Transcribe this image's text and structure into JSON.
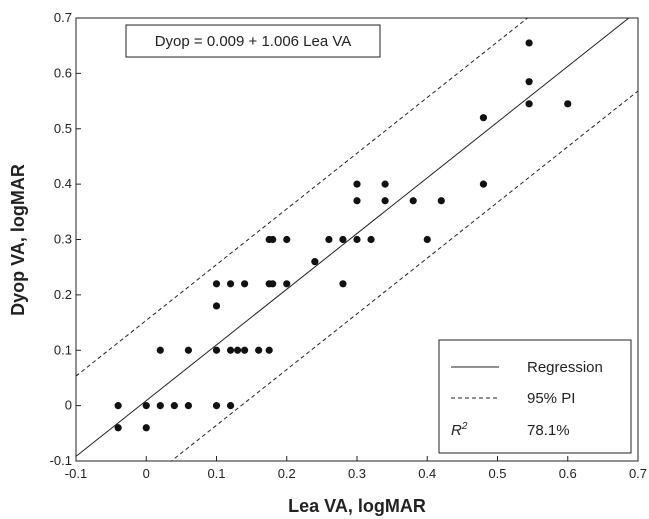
{
  "chart_data": {
    "type": "scatter",
    "title": "",
    "equation": "Dyop = 0.009 + 1.006 Lea VA",
    "xlabel": "Lea VA, logMAR",
    "ylabel": "Dyop VA, logMAR",
    "xlim": [
      -0.1,
      0.7
    ],
    "ylim": [
      -0.1,
      0.7
    ],
    "x_ticks": [
      "-0.1",
      "0",
      "0.1",
      "0.2",
      "0.3",
      "0.4",
      "0.5",
      "0.6",
      "0.7"
    ],
    "y_ticks": [
      "-0.1",
      "0",
      "0.1",
      "0.2",
      "0.3",
      "0.4",
      "0.5",
      "0.6",
      "0.7"
    ],
    "grid": false,
    "legend_position": "bottom-right",
    "regression": {
      "intercept": 0.009,
      "slope": 1.006
    },
    "prediction_interval_offset": 0.145,
    "legend": {
      "regression_label": "Regression",
      "pi_label": "95% PI",
      "r2_symbol": "R",
      "r2_superscript": "2",
      "r2_value": "78.1%"
    },
    "series": [
      {
        "points": [
          [
            -0.04,
            0.0
          ],
          [
            -0.04,
            -0.04
          ],
          [
            0.0,
            0.0
          ],
          [
            0.0,
            -0.04
          ],
          [
            0.02,
            0.1
          ],
          [
            0.02,
            0.0
          ],
          [
            0.04,
            0.0
          ],
          [
            0.06,
            0.1
          ],
          [
            0.06,
            0.0
          ],
          [
            0.1,
            0.22
          ],
          [
            0.1,
            0.18
          ],
          [
            0.1,
            0.1
          ],
          [
            0.1,
            0.0
          ],
          [
            0.12,
            0.22
          ],
          [
            0.12,
            0.1
          ],
          [
            0.12,
            0.0
          ],
          [
            0.13,
            0.1
          ],
          [
            0.14,
            0.22
          ],
          [
            0.14,
            0.1
          ],
          [
            0.16,
            0.1
          ],
          [
            0.175,
            0.3
          ],
          [
            0.175,
            0.22
          ],
          [
            0.175,
            0.1
          ],
          [
            0.18,
            0.3
          ],
          [
            0.18,
            0.22
          ],
          [
            0.2,
            0.3
          ],
          [
            0.2,
            0.22
          ],
          [
            0.24,
            0.26
          ],
          [
            0.26,
            0.3
          ],
          [
            0.28,
            0.3
          ],
          [
            0.28,
            0.22
          ],
          [
            0.3,
            0.4
          ],
          [
            0.3,
            0.37
          ],
          [
            0.3,
            0.3
          ],
          [
            0.32,
            0.3
          ],
          [
            0.34,
            0.4
          ],
          [
            0.34,
            0.37
          ],
          [
            0.38,
            0.37
          ],
          [
            0.4,
            0.3
          ],
          [
            0.42,
            0.37
          ],
          [
            0.48,
            0.52
          ],
          [
            0.48,
            0.4
          ],
          [
            0.545,
            0.655
          ],
          [
            0.545,
            0.585
          ],
          [
            0.545,
            0.545
          ],
          [
            0.6,
            0.545
          ]
        ]
      }
    ]
  }
}
